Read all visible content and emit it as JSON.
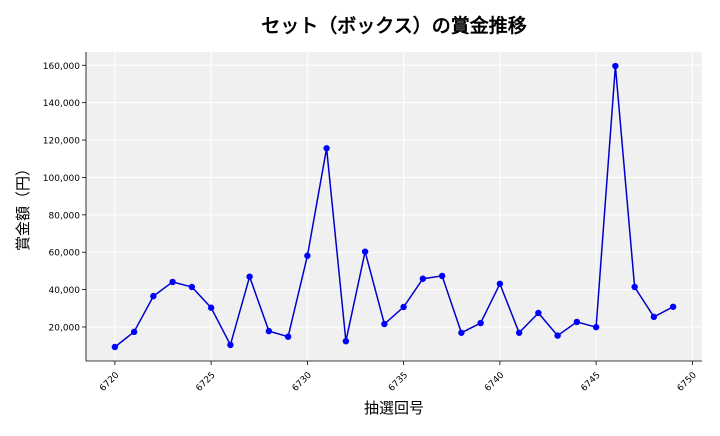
{
  "chart_data": {
    "type": "line",
    "title": "セット（ボックス）の賞金推移",
    "xlabel": "抽選回号",
    "ylabel": "賞金額（円）",
    "x": [
      6720,
      6721,
      6722,
      6723,
      6724,
      6725,
      6726,
      6727,
      6728,
      6729,
      6730,
      6731,
      6732,
      6733,
      6734,
      6735,
      6736,
      6737,
      6738,
      6739,
      6740,
      6741,
      6742,
      6743,
      6744,
      6745,
      6746,
      6747,
      6748,
      6749
    ],
    "series": [
      {
        "values": [
          9300,
          17400,
          36500,
          44100,
          41400,
          30300,
          10400,
          46900,
          17800,
          14800,
          58100,
          115600,
          12400,
          60300,
          21600,
          30700,
          45800,
          47300,
          16900,
          22100,
          43100,
          16900,
          27500,
          15400,
          22700,
          19900,
          159600,
          41400,
          25400,
          30800
        ]
      }
    ],
    "xlim": [
      6718.5,
      6750.5
    ],
    "ylim": [
      1800,
      167100
    ],
    "xticks": [
      6720,
      6725,
      6730,
      6735,
      6740,
      6745,
      6750
    ],
    "yticks": [
      20000,
      40000,
      60000,
      80000,
      100000,
      120000,
      140000,
      160000
    ],
    "ytick_labels": [
      "20,000",
      "40,000",
      "60,000",
      "80,000",
      "100,000",
      "120,000",
      "140,000",
      "160,000"
    ],
    "grid": true,
    "line_color": "#0000cc",
    "marker_color": "#0000ff",
    "plot_background": "#f0f0f0"
  }
}
